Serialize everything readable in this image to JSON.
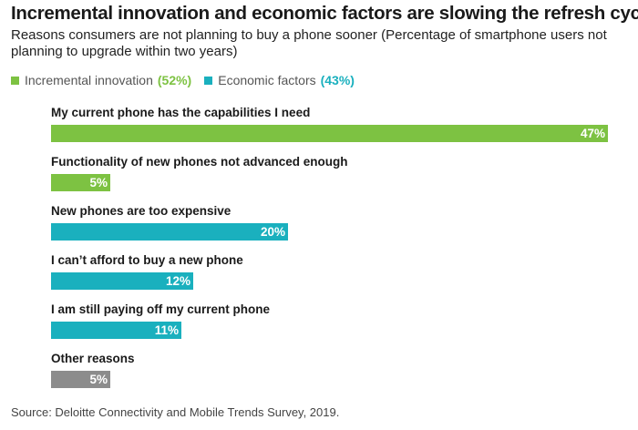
{
  "colors": {
    "innovation": "#7dc242",
    "economic": "#1ab0be",
    "other": "#8c8c8c"
  },
  "legend": [
    {
      "label": "Incremental innovation",
      "pct": "(52%)",
      "color": "#7dc242"
    },
    {
      "label": "Economic factors",
      "pct": "(43%)",
      "color": "#1ab0be"
    }
  ],
  "chart_data": {
    "type": "bar",
    "orientation": "horizontal",
    "title": "Incremental innovation and economic factors are slowing the refresh cycle",
    "subtitle": "Reasons consumers are not planning to buy a phone sooner (Percentage of smartphone users not planning to upgrade within two years)",
    "categories": [
      "My current phone has the capabilities I need",
      "Functionality of new phones not advanced enough",
      "New phones are too expensive",
      "I can’t afford to buy a new phone",
      "I am still paying off my current phone",
      "Other reasons"
    ],
    "values": [
      47,
      5,
      20,
      12,
      11,
      5
    ],
    "value_labels": [
      "47%",
      "5%",
      "20%",
      "12%",
      "11%",
      "5%"
    ],
    "groups": [
      "innovation",
      "innovation",
      "economic",
      "economic",
      "economic",
      "other"
    ],
    "xlim": [
      0,
      47
    ],
    "unit": "%"
  },
  "source": "Source: Deloitte Connectivity and Mobile Trends Survey, 2019."
}
